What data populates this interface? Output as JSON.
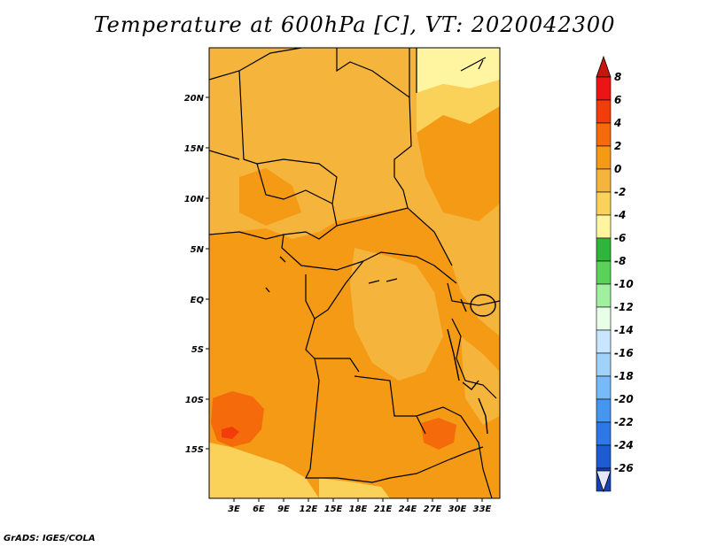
{
  "title": "Temperature at 600hPa [C], VT: 2020042300",
  "credit": "GrADS: IGES/COLA",
  "map": {
    "lat_labels": [
      "20N",
      "15N",
      "10N",
      "5N",
      "EQ",
      "5S",
      "10S",
      "15S"
    ],
    "lon_labels": [
      "3E",
      "6E",
      "9E",
      "12E",
      "15E",
      "18E",
      "21E",
      "24E",
      "27E",
      "30E",
      "33E"
    ]
  },
  "colorbar": {
    "labels": [
      "8",
      "6",
      "4",
      "2",
      "0",
      "-2",
      "-4",
      "-6",
      "-8",
      "-10",
      "-12",
      "-14",
      "-16",
      "-18",
      "-20",
      "-22",
      "-24",
      "-26"
    ],
    "colors": [
      "#ec1414",
      "#f23c0a",
      "#f56a0a",
      "#f59a14",
      "#f5b43c",
      "#fad25a",
      "#fff5a0",
      "#2fb43c",
      "#5ad25a",
      "#a0f0a0",
      "#e6ffe6",
      "#c8e6ff",
      "#a0d2fa",
      "#78b9fa",
      "#4696f0",
      "#2d78e6",
      "#1e5ad2",
      "#1441b4",
      "#0a1464"
    ],
    "top_arrow_color": "#c8140f",
    "bottom_arrow_color": "#e6e6ff"
  }
}
